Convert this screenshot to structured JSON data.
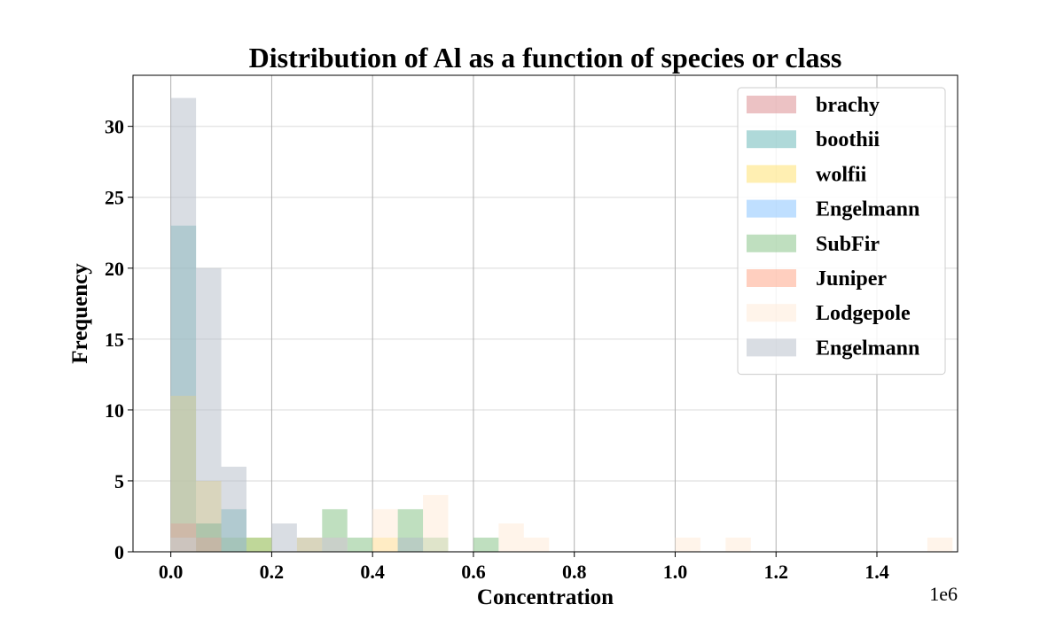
{
  "chart_data": {
    "type": "bar",
    "title": "Distribution of Al as a function of species or class",
    "xlabel": "Concentration",
    "ylabel": "Frequency",
    "x_offset_label": "1e6",
    "x_ticks": [
      0.0,
      0.2,
      0.4,
      0.6,
      0.8,
      1.0,
      1.2,
      1.4
    ],
    "x_tick_labels": [
      "0.0",
      "0.2",
      "0.4",
      "0.6",
      "0.8",
      "1.0",
      "1.2",
      "1.4"
    ],
    "y_ticks": [
      0,
      5,
      10,
      15,
      20,
      25,
      30
    ],
    "y_tick_labels": [
      "0",
      "5",
      "10",
      "15",
      "20",
      "25",
      "30"
    ],
    "xlim": [
      -0.075,
      1.56
    ],
    "ylim": [
      0,
      33.6
    ],
    "x_grid": true,
    "y_grid": true,
    "legend_position": "top-right",
    "bin_width": 0.05,
    "series": [
      {
        "name": "brachy",
        "color": "#d9868a",
        "bars": [
          [
            0.0,
            2
          ],
          [
            0.05,
            1
          ]
        ]
      },
      {
        "name": "boothii",
        "color": "#5fb3b3",
        "bars": [
          [
            0.0,
            23
          ],
          [
            0.05,
            2
          ],
          [
            0.1,
            3
          ]
        ]
      },
      {
        "name": "wolfii",
        "color": "#ffe066",
        "bars": [
          [
            0.0,
            11
          ],
          [
            0.05,
            5
          ],
          [
            0.15,
            1
          ],
          [
            0.25,
            1
          ],
          [
            0.4,
            1
          ]
        ]
      },
      {
        "name": "Engelmann",
        "color": "#7fbfff",
        "bars": [
          [
            0.0,
            1
          ]
        ]
      },
      {
        "name": "SubFir",
        "color": "#7fbf7f",
        "bars": [
          [
            0.0,
            1
          ],
          [
            0.05,
            2
          ],
          [
            0.1,
            1
          ],
          [
            0.15,
            1
          ],
          [
            0.3,
            3
          ],
          [
            0.35,
            1
          ],
          [
            0.45,
            3
          ],
          [
            0.5,
            1
          ],
          [
            0.6,
            1
          ]
        ]
      },
      {
        "name": "Juniper",
        "color": "#ff9f7f",
        "bars": [
          [
            0.0,
            2
          ],
          [
            0.05,
            1
          ]
        ]
      },
      {
        "name": "Lodgepole",
        "color": "#ffe9d6",
        "bars": [
          [
            0.0,
            1
          ],
          [
            0.3,
            1
          ],
          [
            0.4,
            3
          ],
          [
            0.5,
            4
          ],
          [
            0.65,
            2
          ],
          [
            0.7,
            1
          ],
          [
            1.0,
            1
          ],
          [
            1.1,
            1
          ],
          [
            1.5,
            1
          ]
        ]
      },
      {
        "name": "Engelmann",
        "color": "#b3bcc8",
        "bars": [
          [
            0.0,
            32
          ],
          [
            0.05,
            20
          ],
          [
            0.1,
            6
          ],
          [
            0.2,
            2
          ],
          [
            0.25,
            1
          ],
          [
            0.3,
            1
          ],
          [
            0.45,
            1
          ]
        ]
      }
    ]
  }
}
